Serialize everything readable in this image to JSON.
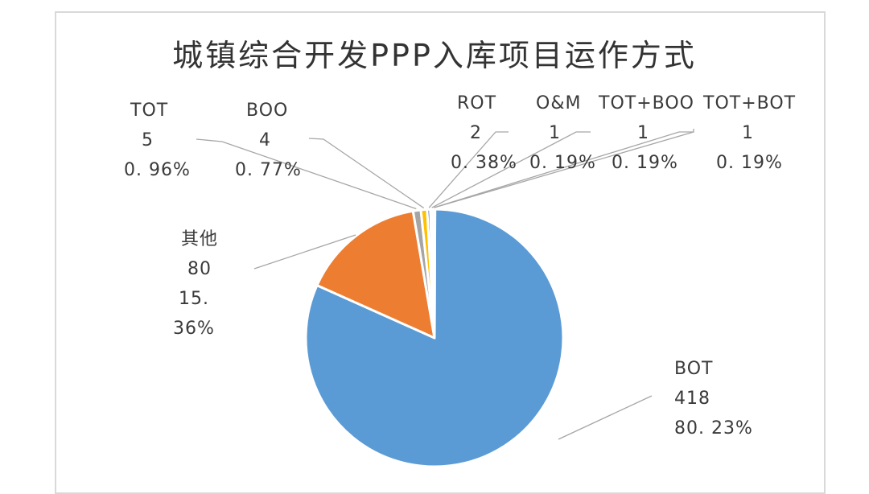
{
  "chart_data": {
    "type": "pie",
    "title": "城镇综合开发PPP入库项目运作方式",
    "slices": [
      {
        "name": "BOT",
        "value": 418,
        "percent": "80.23%",
        "color": "#5b9bd5"
      },
      {
        "name": "其他",
        "value": 80,
        "percent": "15.36%",
        "color": "#ed7d31"
      },
      {
        "name": "TOT",
        "value": 5,
        "percent": "0.96%",
        "color": "#a5a5a5"
      },
      {
        "name": "BOO",
        "value": 4,
        "percent": "0.77%",
        "color": "#ffc000"
      },
      {
        "name": "ROT",
        "value": 2,
        "percent": "0.38%",
        "color": "#4472c4"
      },
      {
        "name": "O&M",
        "value": 1,
        "percent": "0.19%",
        "color": "#70ad47"
      },
      {
        "name": "TOT+BOO",
        "value": 1,
        "percent": "0.19%",
        "color": "#264478"
      },
      {
        "name": "TOT+BOT",
        "value": 1,
        "percent": "0.19%",
        "color": "#9e480e"
      }
    ],
    "data_labels": [
      {
        "name": "BOT",
        "value": "418",
        "percent": "80. 23%"
      },
      {
        "name": "其他",
        "value": "80",
        "percent": "15. 36%"
      },
      {
        "name": "TOT",
        "value": "5",
        "percent": "0. 96%"
      },
      {
        "name": "BOO",
        "value": "4",
        "percent": "0. 77%"
      },
      {
        "name": "ROT",
        "value": "2",
        "percent": "0. 38%"
      },
      {
        "name": "O&M",
        "value": "1",
        "percent": "0. 19%"
      },
      {
        "name": "TOT+BOO",
        "value": "1",
        "percent": "0. 19%"
      },
      {
        "name": "TOT+BOT",
        "value": "1",
        "percent": "0. 19%"
      }
    ],
    "legend": "none",
    "grid": false
  }
}
